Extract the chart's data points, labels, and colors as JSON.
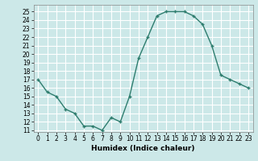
{
  "x": [
    0,
    1,
    2,
    3,
    4,
    5,
    6,
    7,
    8,
    9,
    10,
    11,
    12,
    13,
    14,
    15,
    16,
    17,
    18,
    19,
    20,
    21,
    22,
    23
  ],
  "y": [
    17,
    15.5,
    15,
    13.5,
    13,
    11.5,
    11.5,
    11,
    12.5,
    12,
    15,
    19.5,
    22,
    24.5,
    25,
    25,
    25,
    24.5,
    23.5,
    21,
    17.5,
    17,
    16.5,
    16
  ],
  "xlabel": "Humidex (Indice chaleur)",
  "xlim": [
    -0.5,
    23.5
  ],
  "ylim": [
    10.8,
    25.8
  ],
  "yticks": [
    11,
    12,
    13,
    14,
    15,
    16,
    17,
    18,
    19,
    20,
    21,
    22,
    23,
    24,
    25
  ],
  "xticks": [
    0,
    1,
    2,
    3,
    4,
    5,
    6,
    7,
    8,
    9,
    10,
    11,
    12,
    13,
    14,
    15,
    16,
    17,
    18,
    19,
    20,
    21,
    22,
    23
  ],
  "line_color": "#2e7d6e",
  "marker_color": "#2e7d6e",
  "bg_color": "#cce8e8",
  "grid_color": "#ffffff",
  "tick_fontsize": 5.5,
  "xlabel_fontsize": 6.5
}
